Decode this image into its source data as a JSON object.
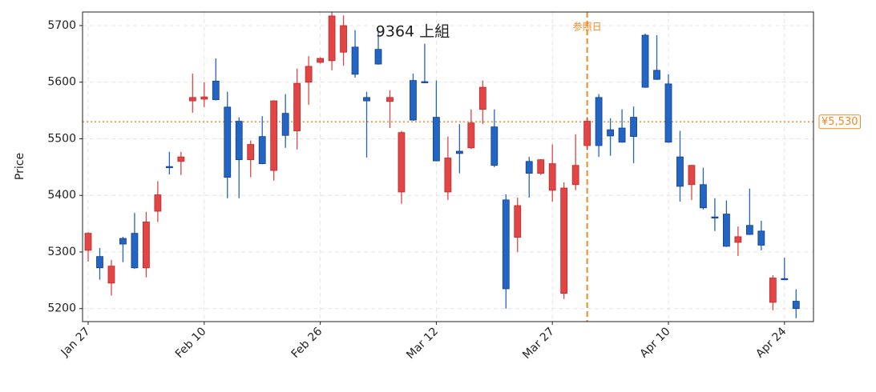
{
  "chart_data": {
    "type": "candlestick",
    "title": "9364  上組",
    "y_label": "Price",
    "categories": [
      "Jan 27",
      null,
      null,
      null,
      null,
      null,
      null,
      null,
      null,
      null,
      "Feb 10",
      null,
      null,
      null,
      null,
      null,
      null,
      null,
      null,
      null,
      "Feb 26",
      null,
      null,
      null,
      null,
      null,
      null,
      null,
      null,
      null,
      "Mar 12",
      null,
      null,
      null,
      null,
      null,
      null,
      null,
      null,
      null,
      "Mar 27",
      null,
      null,
      null,
      null,
      null,
      null,
      null,
      null,
      null,
      "Apr 10",
      null,
      null,
      null,
      null,
      null,
      null,
      null,
      null,
      null,
      "Apr 24",
      null
    ],
    "open": [
      5303,
      5292,
      5245,
      5324,
      5333,
      5272,
      5372,
      5451,
      5460,
      5567,
      5570,
      5602,
      5556,
      5531,
      5463,
      5504,
      5444,
      5545,
      5514,
      5600,
      5635,
      5638,
      5653,
      5662,
      5573,
      5658,
      5566,
      5406,
      5603,
      5601,
      5538,
      5406,
      5478,
      5484,
      5552,
      5521,
      5392,
      5326,
      5460,
      5439,
      5409,
      5227,
      5419,
      5488,
      5573,
      5516,
      5519,
      5538,
      5683,
      5621,
      5597,
      5468,
      5419,
      5419,
      5362,
      5367,
      5317,
      5347,
      5337,
      5211,
      5253,
      5213
    ],
    "high": [
      5335,
      5307,
      5286,
      5327,
      5369,
      5371,
      5425,
      5477,
      5477,
      5615,
      5600,
      5642,
      5583,
      5538,
      5497,
      5540,
      5568,
      5579,
      5624,
      5646,
      5644,
      5724,
      5718,
      5692,
      5583,
      5692,
      5586,
      5514,
      5615,
      5668,
      5603,
      5504,
      5526,
      5552,
      5603,
      5552,
      5402,
      5396,
      5468,
      5464,
      5490,
      5423,
      5508,
      5538,
      5579,
      5536,
      5552,
      5557,
      5686,
      5683,
      5614,
      5514,
      5454,
      5449,
      5395,
      5391,
      5345,
      5412,
      5355,
      5259,
      5290,
      5234
    ],
    "low": [
      5283,
      5251,
      5223,
      5282,
      5270,
      5255,
      5353,
      5437,
      5436,
      5546,
      5556,
      5568,
      5395,
      5395,
      5432,
      5455,
      5426,
      5484,
      5481,
      5560,
      5633,
      5621,
      5629,
      5608,
      5467,
      5631,
      5519,
      5385,
      5532,
      5598,
      5460,
      5392,
      5439,
      5482,
      5526,
      5450,
      5200,
      5300,
      5396,
      5436,
      5389,
      5217,
      5409,
      5480,
      5468,
      5470,
      5493,
      5457,
      5590,
      5604,
      5493,
      5389,
      5392,
      5375,
      5337,
      5309,
      5293,
      5330,
      5303,
      5197,
      5251,
      5183
    ],
    "close": [
      5333,
      5272,
      5275,
      5314,
      5272,
      5353,
      5401,
      5449,
      5468,
      5573,
      5574,
      5569,
      5432,
      5463,
      5490,
      5456,
      5567,
      5506,
      5598,
      5628,
      5642,
      5717,
      5700,
      5614,
      5567,
      5632,
      5573,
      5511,
      5533,
      5599,
      5461,
      5466,
      5474,
      5528,
      5591,
      5453,
      5235,
      5382,
      5439,
      5463,
      5456,
      5413,
      5453,
      5531,
      5488,
      5505,
      5494,
      5504,
      5591,
      5605,
      5494,
      5416,
      5453,
      5378,
      5360,
      5310,
      5327,
      5331,
      5312,
      5254,
      5252,
      5200
    ],
    "up_color": "#e04646",
    "down_color": "#2265c2",
    "ylim": [
      5177,
      5724
    ],
    "yticks": [
      5200,
      5300,
      5400,
      5500,
      5600,
      5700
    ],
    "grid": true,
    "reference_line": {
      "value": 5530,
      "label": {
        "value": 5530,
        "label": "¥5,530"
      },
      "color": "#f08a24"
    },
    "reference_date": {
      "category_index": 43,
      "label": "参照日",
      "color": "#f08a24"
    }
  }
}
